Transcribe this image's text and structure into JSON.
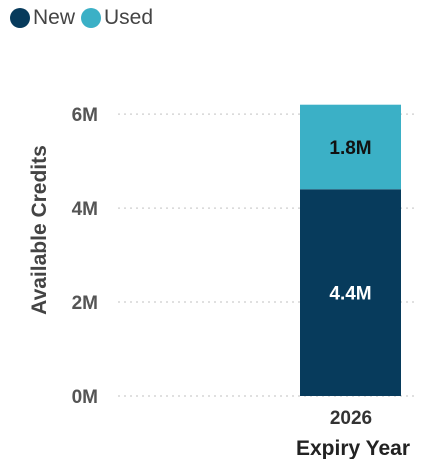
{
  "chart_data": {
    "type": "bar",
    "stacked": true,
    "categories": [
      "2026"
    ],
    "series": [
      {
        "name": "New",
        "values": [
          4.4
        ],
        "color": "#073b5c",
        "data_label": "4.4M"
      },
      {
        "name": "Used",
        "values": [
          1.8
        ],
        "color": "#3bb0c6",
        "data_label": "1.8M"
      }
    ],
    "title": "",
    "xlabel": "Expiry Year",
    "ylabel": "Available Credits",
    "ylim": [
      0,
      6
    ],
    "yticks": [
      {
        "value": 0,
        "label": "0M"
      },
      {
        "value": 2,
        "label": "2M"
      },
      {
        "value": 4,
        "label": "4M"
      },
      {
        "value": 6,
        "label": "6M"
      }
    ],
    "grid": true,
    "legend_position": "top-left"
  }
}
